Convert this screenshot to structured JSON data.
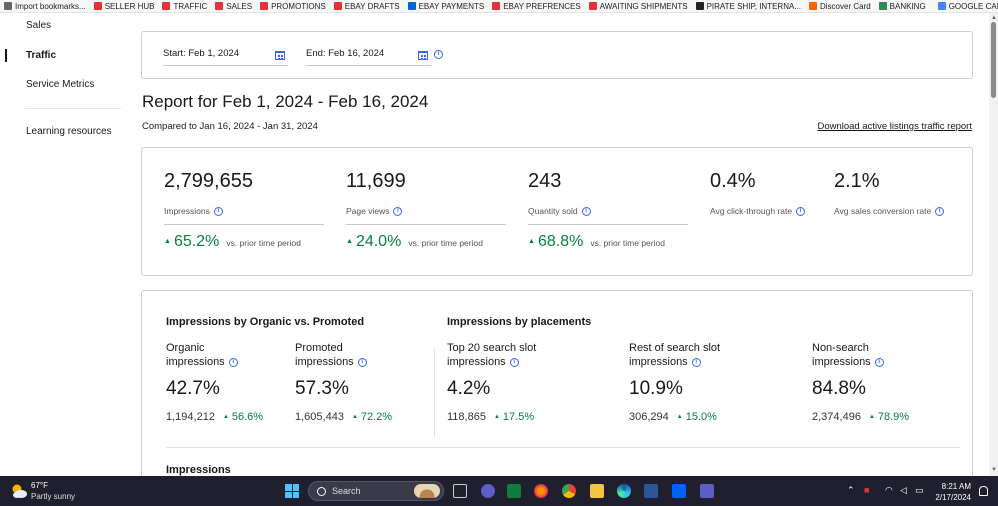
{
  "bookmarks": [
    {
      "label": "Import bookmarks...",
      "color": "#666666"
    },
    {
      "label": "SELLER HUB",
      "color": "#e53238"
    },
    {
      "label": "TRAFFIC",
      "color": "#e53238"
    },
    {
      "label": "SALES",
      "color": "#e53238"
    },
    {
      "label": "PROMOTIONS",
      "color": "#e53238"
    },
    {
      "label": "EBAY DRAFTS",
      "color": "#e53238"
    },
    {
      "label": "EBAY PAYMENTS",
      "color": "#0064d2"
    },
    {
      "label": "EBAY PREFRENCES",
      "color": "#e53238"
    },
    {
      "label": "AWAITING SHIPMENTS",
      "color": "#e53238"
    },
    {
      "label": "PIRATE SHIP, INTERNA...",
      "color": "#222222"
    },
    {
      "label": "Discover Card",
      "color": "#ff6000"
    },
    {
      "label": "BANKING",
      "color": "#2e8b57"
    },
    {
      "label": "GOOGLE CALENDAR",
      "color": "#4285f4"
    }
  ],
  "nav": {
    "sales": "Sales",
    "traffic": "Traffic",
    "service_metrics": "Service Metrics",
    "learning": "Learning resources"
  },
  "date_filter": {
    "start": "Start: Feb 1, 2024",
    "end": "End: Feb 16, 2024"
  },
  "report": {
    "title": "Report for Feb 1, 2024 - Feb 16, 2024",
    "compared": "Compared to Jan 16, 2024 - Jan 31, 2024",
    "download": "Download active listings traffic report"
  },
  "kpis": {
    "impressions": {
      "value": "2,799,655",
      "label": "Impressions",
      "change": "65.2%",
      "vs": "vs. prior time period"
    },
    "page_views": {
      "value": "11,699",
      "label": "Page views",
      "change": "24.0%",
      "vs": "vs. prior time period"
    },
    "quantity_sold": {
      "value": "243",
      "label": "Quantity sold",
      "change": "68.8%",
      "vs": "vs. prior time period"
    },
    "ctr": {
      "value": "0.4%",
      "label": "Avg click-through rate"
    },
    "conversion": {
      "value": "2.1%",
      "label": "Avg sales conversion rate"
    }
  },
  "organic_vs_promoted": {
    "title": "Impressions by Organic vs. Promoted",
    "organic": {
      "label1": "Organic",
      "label2": "impressions",
      "value": "42.7%",
      "count": "1,194,212",
      "change": "56.6%"
    },
    "promoted": {
      "label1": "Promoted",
      "label2": "impressions",
      "value": "57.3%",
      "count": "1,605,443",
      "change": "72.2%"
    }
  },
  "placements": {
    "title": "Impressions by placements",
    "top20": {
      "label1": "Top 20 search slot",
      "label2": "impressions",
      "value": "4.2%",
      "count": "118,865",
      "change": "17.5%"
    },
    "rest": {
      "label1": "Rest of search slot",
      "label2": "impressions",
      "value": "10.9%",
      "count": "306,294",
      "change": "15.0%"
    },
    "nonsearch": {
      "label1": "Non-search",
      "label2": "impressions",
      "value": "84.8%",
      "count": "2,374,496",
      "change": "78.9%"
    }
  },
  "impressions_section": "Impressions",
  "taskbar": {
    "temp": "67°F",
    "weather": "Partly sunny",
    "search": "Search",
    "time": "8:21 AM",
    "date": "2/17/2024"
  },
  "colors": {
    "accent": "#3665f3",
    "positive": "#05823f"
  }
}
